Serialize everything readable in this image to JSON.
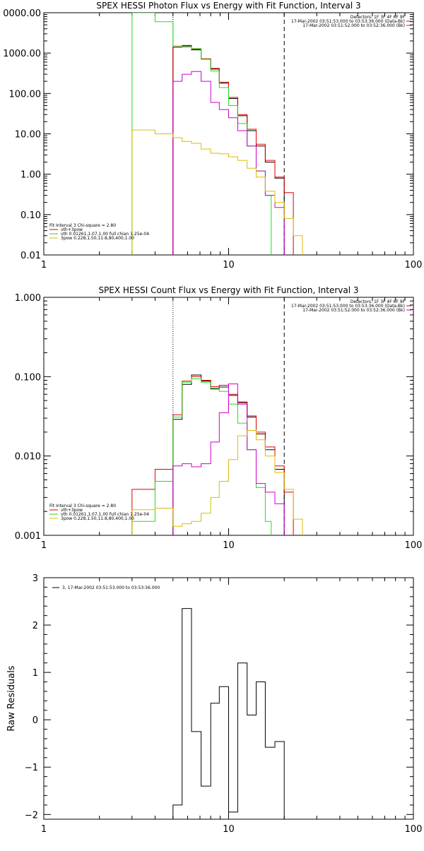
{
  "chart_data": [
    {
      "type": "line",
      "panel": "photon",
      "title": "SPEX HESSI Photon Flux vs Energy with Fit Function, Interval 3",
      "xlabel": "",
      "ylabel": "",
      "xscale": "log",
      "yscale": "log",
      "xlim": [
        1,
        100
      ],
      "ylim": [
        0.01,
        10000
      ],
      "x_ticks": [
        "1",
        "10",
        "100"
      ],
      "y_ticks": [
        "0.01",
        "0.10",
        "1.00",
        "10.00",
        "100.00",
        "1000.00",
        "0000.00"
      ],
      "vlines": [
        {
          "x": 5.0,
          "style": "dotted",
          "color": "#000000"
        },
        {
          "x": 20.0,
          "style": "dashed",
          "color": "#000000"
        }
      ],
      "info_text": [
        "Detectors: 1F 3F 4F 6F 9F",
        "17-Mar-2002 03:51:53.000 to 03:53:36.000 (Data-Bk)",
        "17-Mar-2002 03:51:52.000 to 03:52:36.000 (Bk)"
      ],
      "legend_position": "bottom-left",
      "legend_title": "Fit Interval 3   Chi-square = 2.80",
      "legend": [
        "vth+3pow",
        "vth 0.01261,1.07,1.00  full chian 1.25e-04",
        "3pow 0.228,1.50,11.8,80,400,1.00"
      ],
      "series": [
        {
          "name": "",
          "color": "#000000",
          "edges": [
            5.0,
            5.6,
            6.3,
            7.1,
            8.0,
            8.9,
            10.0,
            11.2,
            12.6,
            14.1,
            15.8,
            17.8,
            20.0
          ],
          "values": [
            1400,
            1500,
            1200,
            700,
            400,
            180,
            75,
            28,
            12,
            5,
            2,
            0.8
          ]
        },
        {
          "name": "vth+3pow",
          "color": "#dd0000",
          "edges": [
            5.0,
            5.6,
            6.3,
            7.1,
            8.0,
            8.9,
            10.0,
            11.2,
            12.6,
            14.1,
            15.8,
            17.8,
            20.0,
            22.4
          ],
          "values": [
            1400,
            1550,
            1250,
            720,
            420,
            190,
            80,
            30,
            13,
            5.5,
            2.2,
            0.85,
            0.35
          ]
        },
        {
          "name": "vth 0.01261,1.07,1.00  full chian 1.25e-04",
          "color": "#22dd22",
          "edges": [
            3.0,
            4.0,
            5.0,
            5.6,
            6.3,
            7.1,
            8.0,
            8.9,
            10.0,
            11.2,
            12.6,
            14.1,
            15.8,
            17.0
          ],
          "values": [
            10000,
            6000,
            1500,
            1400,
            1300,
            700,
            360,
            140,
            50,
            18,
            5,
            1.2,
            0.3
          ]
        },
        {
          "name": "",
          "color": "#cc00cc",
          "edges": [
            5.0,
            5.6,
            6.3,
            7.1,
            8.0,
            8.9,
            10.0,
            11.2,
            12.6,
            14.1,
            15.8,
            17.8,
            20.0
          ],
          "values": [
            200,
            300,
            350,
            200,
            60,
            40,
            25,
            12,
            5,
            1.2,
            0.3,
            0.15
          ]
        },
        {
          "name": "3pow 0.228,1.50,11.8,80,400,1.00",
          "color": "#ddbb00",
          "edges": [
            3.0,
            4.0,
            5.0,
            5.6,
            6.3,
            7.1,
            8.0,
            8.9,
            10.0,
            11.2,
            12.6,
            14.1,
            15.8,
            17.8,
            20.0,
            22.4,
            25.1
          ],
          "values": [
            12.5,
            10,
            8,
            6.5,
            5.8,
            4.2,
            3.3,
            3.2,
            2.7,
            2.2,
            1.4,
            0.85,
            0.38,
            0.2,
            0.08,
            0.03
          ]
        }
      ]
    },
    {
      "type": "line",
      "panel": "count",
      "title": "SPEX HESSI Count Flux vs Energy with Fit Function, Interval 3",
      "xlabel": "",
      "ylabel": "",
      "xscale": "log",
      "yscale": "log",
      "xlim": [
        1,
        100
      ],
      "ylim": [
        0.001,
        1
      ],
      "x_ticks": [
        "1",
        "10",
        "100"
      ],
      "y_ticks": [
        "0.001",
        "0.010",
        "0.100",
        "1.000"
      ],
      "vlines": [
        {
          "x": 5.0,
          "style": "dotted",
          "color": "#000000"
        },
        {
          "x": 20.0,
          "style": "dashed",
          "color": "#000000"
        }
      ],
      "info_text": [
        "Detectors: 1F 3F 4F 6F 9F",
        "17-Mar-2002 03:51:53.000 to 03:53:36.000 (Data-Bk)",
        "17-Mar-2002 03:51:52.000 to 03:52:36.000 (Bk)"
      ],
      "legend_position": "bottom-left",
      "legend_title": "Fit Interval 3   Chi-square = 2.80",
      "legend": [
        "vth+3pow",
        "vth 0.01261,1.07,1.00  full chian 1.25e-04",
        "3pow 0.228,1.50,11.8,80,400,1.00"
      ],
      "series": [
        {
          "name": "",
          "color": "#000000",
          "edges": [
            5.0,
            5.6,
            6.3,
            7.1,
            8.0,
            8.9,
            10.0,
            11.2,
            12.6,
            14.1,
            15.8,
            17.8,
            20.0
          ],
          "values": [
            0.029,
            0.08,
            0.105,
            0.088,
            0.07,
            0.074,
            0.058,
            0.047,
            0.031,
            0.019,
            0.012,
            0.0068
          ]
        },
        {
          "name": "vth+3pow",
          "color": "#dd0000",
          "edges": [
            3.0,
            4.0,
            5.0,
            5.6,
            6.3,
            7.1,
            8.0,
            8.9,
            10.0,
            11.2,
            12.6,
            14.1,
            15.8,
            17.8,
            20.0,
            22.4
          ],
          "values": [
            0.0038,
            0.0068,
            0.033,
            0.088,
            0.1,
            0.09,
            0.075,
            0.078,
            0.06,
            0.048,
            0.032,
            0.02,
            0.013,
            0.0075,
            0.0035
          ]
        },
        {
          "name": "vth 0.01261,1.07,1.00  full chian 1.25e-04",
          "color": "#22dd22",
          "edges": [
            3.0,
            4.0,
            5.0,
            5.6,
            6.3,
            7.1,
            8.0,
            8.9,
            10.0,
            11.2,
            12.6,
            14.1,
            15.8,
            17.0
          ],
          "values": [
            0.0015,
            0.0048,
            0.031,
            0.085,
            0.094,
            0.085,
            0.072,
            0.065,
            0.045,
            0.026,
            0.012,
            0.004,
            0.0015
          ]
        },
        {
          "name": "",
          "color": "#cc00cc",
          "edges": [
            5.0,
            5.6,
            6.3,
            7.1,
            8.0,
            8.9,
            10.0,
            11.2,
            12.6,
            14.1,
            15.8,
            17.8,
            20.0
          ],
          "values": [
            0.0075,
            0.008,
            0.0073,
            0.008,
            0.015,
            0.035,
            0.081,
            0.045,
            0.012,
            0.0045,
            0.0035,
            0.0025
          ]
        },
        {
          "name": "3pow 0.228,1.50,11.8,80,400,1.00",
          "color": "#ddbb00",
          "edges": [
            3.0,
            4.0,
            5.0,
            5.6,
            6.3,
            7.1,
            8.0,
            8.9,
            10.0,
            11.2,
            12.6,
            14.1,
            15.8,
            17.8,
            20.0,
            22.4,
            25.1
          ],
          "values": [
            0.0021,
            0.0022,
            0.0013,
            0.0014,
            0.0015,
            0.0019,
            0.003,
            0.0048,
            0.009,
            0.018,
            0.021,
            0.016,
            0.01,
            0.0062,
            0.0038,
            0.0016
          ]
        }
      ]
    },
    {
      "type": "line",
      "panel": "residuals",
      "title": "",
      "xlabel": "",
      "ylabel": "Raw Residuals",
      "xscale": "log",
      "yscale": "linear",
      "xlim": [
        1,
        100
      ],
      "ylim": [
        -2.1,
        3
      ],
      "x_ticks": [
        "1",
        "10",
        "100"
      ],
      "y_ticks": [
        "-2",
        "-1",
        "0",
        "1",
        "2",
        "3"
      ],
      "legend_position": "top-left",
      "legend": [
        "3, 17-Mar-2002 03:51:53.000 to 03:53:36.000"
      ],
      "series": [
        {
          "name": "3, 17-Mar-2002 03:51:53.000 to 03:53:36.000",
          "color": "#000000",
          "edges": [
            5.0,
            5.6,
            6.3,
            7.1,
            8.0,
            8.9,
            10.0,
            11.2,
            12.6,
            14.1,
            15.8,
            17.8,
            20.0
          ],
          "values": [
            -1.8,
            2.35,
            -0.25,
            -1.4,
            0.35,
            0.7,
            -1.95,
            1.2,
            0.1,
            0.8,
            -0.58,
            -0.46
          ]
        }
      ]
    }
  ]
}
